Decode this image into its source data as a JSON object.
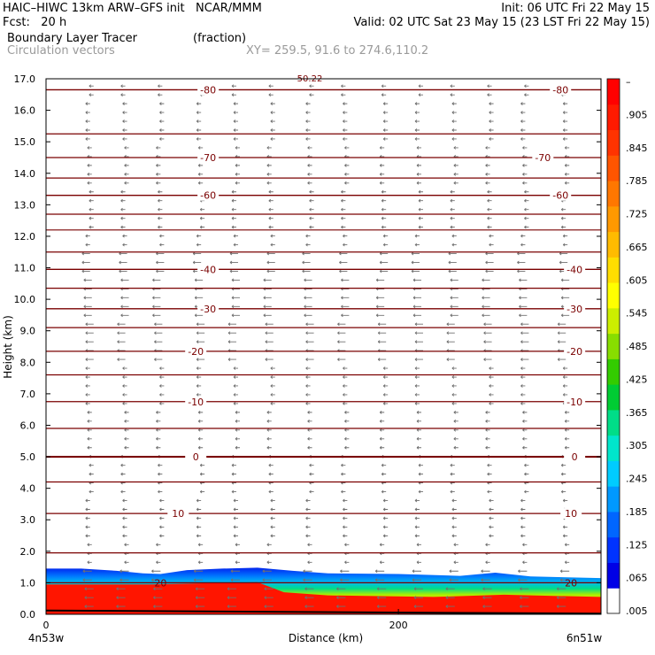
{
  "header": {
    "line1_left": "HAIC–HIWC 13km ARW–GFS init   NCAR/MMM",
    "line1_right": "Init: 06 UTC Fri 22 May 15",
    "line2_left": "Fcst:   20 h",
    "line2_right": "Valid: 02 UTC Sat 23 May 15 (23 LST Fri 22 May 15)",
    "field_name": "Boundary Layer Tracer",
    "field_units": "(fraction)",
    "vector_name": "Circulation vectors",
    "xy_text": "XY= 259.5, 91.6 to 274.6,110.2"
  },
  "colors": {
    "contour": "#7a0000",
    "vector": "#707070",
    "field_stops": [
      "#ffffff",
      "#0000e6",
      "#0033ff",
      "#0066ff",
      "#0099ff",
      "#00ccff",
      "#00e6cc",
      "#00dd88",
      "#00cc33",
      "#33cc00",
      "#88dd00",
      "#ccee00",
      "#ffff00",
      "#ffdd00",
      "#ffbb00",
      "#ff9900",
      "#ff7700",
      "#ff5500",
      "#ff3300",
      "#ff1a00",
      "#ff0000"
    ]
  },
  "chart_data": {
    "type": "heatmap",
    "title": "Boundary Layer Tracer (fraction)",
    "xlabel": "Distance (km)",
    "ylabel": "Height (km)",
    "xlim": [
      0,
      315
    ],
    "ylim": [
      0,
      17.0
    ],
    "x_ticks": [
      {
        "value": 0,
        "label": "0"
      },
      {
        "value": 200,
        "label": "200"
      }
    ],
    "x_end_labels": {
      "left": "4n53w",
      "right": "6n51w"
    },
    "y_ticks": [
      0.0,
      1.0,
      2.0,
      3.0,
      4.0,
      5.0,
      6.0,
      7.0,
      8.0,
      9.0,
      10.0,
      11.0,
      12.0,
      13.0,
      14.0,
      15.0,
      16.0,
      17.0
    ],
    "y_tick_labels": [
      "0.0",
      "1.0",
      "2.0",
      "3.0",
      "4.0",
      "5.0",
      "6.0",
      "7.0",
      "8.0",
      "9.0",
      "10.0",
      "11.0",
      "12.0",
      "13.0",
      "14.0",
      "15.0",
      "16.0",
      "17.0"
    ],
    "colorbar_labels": [
      "–",
      ".905",
      ".845",
      ".785",
      ".725",
      ".665",
      ".605",
      ".545",
      ".485",
      ".425",
      ".365",
      ".305",
      ".245",
      ".185",
      ".125",
      ".065",
      ".005"
    ],
    "tracer_top_km": [
      {
        "x": 0,
        "h": 1.45
      },
      {
        "x": 20,
        "h": 1.45
      },
      {
        "x": 40,
        "h": 1.38
      },
      {
        "x": 55,
        "h": 1.3
      },
      {
        "x": 65,
        "h": 1.28
      },
      {
        "x": 80,
        "h": 1.4
      },
      {
        "x": 100,
        "h": 1.45
      },
      {
        "x": 120,
        "h": 1.48
      },
      {
        "x": 140,
        "h": 1.38
      },
      {
        "x": 160,
        "h": 1.3
      },
      {
        "x": 200,
        "h": 1.28
      },
      {
        "x": 235,
        "h": 1.22
      },
      {
        "x": 255,
        "h": 1.32
      },
      {
        "x": 275,
        "h": 1.2
      },
      {
        "x": 315,
        "h": 1.15
      }
    ],
    "red_top_km": [
      {
        "x": 0,
        "h": 0.95
      },
      {
        "x": 60,
        "h": 0.95
      },
      {
        "x": 120,
        "h": 1.02
      },
      {
        "x": 135,
        "h": 0.7
      },
      {
        "x": 160,
        "h": 0.6
      },
      {
        "x": 220,
        "h": 0.55
      },
      {
        "x": 260,
        "h": 0.62
      },
      {
        "x": 315,
        "h": 0.55
      }
    ],
    "temperature_contours": [
      {
        "value": -80,
        "label": "-80",
        "h_km": 16.65,
        "label_x": [
          92,
          292
        ]
      },
      {
        "value": -70,
        "label": "-70",
        "h_km": 14.5,
        "label_x": [
          92,
          282
        ]
      },
      {
        "value": -60,
        "label": "-60",
        "h_km": 13.3,
        "label_x": [
          92,
          292
        ]
      },
      {
        "value": -40,
        "label": "-40",
        "h_km": 10.95,
        "label_x": [
          92,
          300
        ]
      },
      {
        "value": -30,
        "label": "-30",
        "h_km": 9.7,
        "label_x": [
          92,
          300
        ]
      },
      {
        "value": -20,
        "label": "-20",
        "h_km": 8.35,
        "label_x": [
          85,
          300
        ]
      },
      {
        "value": -10,
        "label": "-10",
        "h_km": 6.75,
        "label_x": [
          85,
          300
        ]
      },
      {
        "value": 0,
        "label": "0",
        "h_km": 5.0,
        "label_x": [
          85,
          300
        ]
      },
      {
        "value": 10,
        "label": "10",
        "h_km": 3.2,
        "label_x": [
          75,
          298
        ]
      },
      {
        "value": 20,
        "label": "20",
        "h_km": 1.0,
        "label_x": [
          65,
          298
        ]
      }
    ],
    "unlabeled_contour_heights_km": [
      15.25,
      13.85,
      12.7,
      12.2,
      11.5,
      10.35,
      9.1,
      7.6,
      5.9,
      4.2,
      1.95
    ],
    "top_fragment_label": "50.22"
  }
}
